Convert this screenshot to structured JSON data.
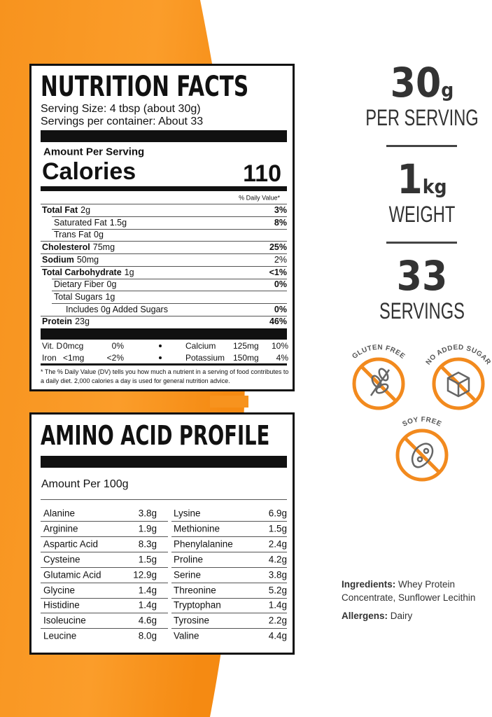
{
  "nutrition_facts": {
    "title": "NUTRITION FACTS",
    "serving_size": "Serving Size: 4 tbsp (about 30g)",
    "servings_per_container": "Servings per container: About 33",
    "amount_per_serving": "Amount Per Serving",
    "calories": {
      "label": "Calories",
      "value": 110
    },
    "daily_value_header": "% Daily Value*",
    "rows": [
      {
        "nutrient": "Total Fat",
        "amount": "2g",
        "daily_value": "3%"
      },
      {
        "nutrient": "Saturated Fat",
        "amount": "1.5g",
        "daily_value": "8%"
      },
      {
        "nutrient": "Trans Fat",
        "amount": "0g"
      },
      {
        "nutrient": "Cholesterol",
        "amount": "75mg",
        "daily_value": "25%"
      },
      {
        "nutrient": "Sodium",
        "amount": "50mg",
        "daily_value": "2%"
      },
      {
        "nutrient": "Total Carbohydrate",
        "amount": "1g",
        "daily_value": "<1%"
      },
      {
        "nutrient": "Dietary Fiber",
        "amount": "0g",
        "daily_value": "0%"
      },
      {
        "nutrient": "Total Sugars",
        "amount": "1g"
      },
      {
        "nutrient": "Includes 0g Added Sugars",
        "daily_value": "0%"
      },
      {
        "nutrient": "Protein",
        "amount": "23g",
        "daily_value": "46%"
      }
    ],
    "vitamins": [
      {
        "nutrient": "Vit. D",
        "amount": "0mcg",
        "daily_value": "0%"
      },
      {
        "nutrient": "Calcium",
        "amount": "125mg",
        "daily_value": "10%"
      },
      {
        "nutrient": "Iron",
        "amount": "<1mg",
        "daily_value": "<2%"
      },
      {
        "nutrient": "Potassium",
        "amount": "150mg",
        "daily_value": "4%"
      }
    ],
    "footnote": "* The % Daily Value (DV) tells you how much a nutrient in a serving of food contributes to a daily diet. 2,000 calories a day is used for general nutrition advice."
  },
  "amino_acid_profile": {
    "title": "AMINO ACID PROFILE",
    "basis": "Amount Per 100g",
    "rows": [
      {
        "name": "Alanine",
        "amount": "3.8g"
      },
      {
        "name": "Arginine",
        "amount": "1.9g"
      },
      {
        "name": "Aspartic Acid",
        "amount": "8.3g"
      },
      {
        "name": "Cysteine",
        "amount": "1.5g"
      },
      {
        "name": "Glutamic Acid",
        "amount": "12.9g"
      },
      {
        "name": "Glycine",
        "amount": "1.4g"
      },
      {
        "name": "Histidine",
        "amount": "1.4g"
      },
      {
        "name": "Isoleucine",
        "amount": "4.6g"
      },
      {
        "name": "Leucine",
        "amount": "8.0g"
      },
      {
        "name": "Lysine",
        "amount": "6.9g"
      },
      {
        "name": "Methionine",
        "amount": "1.5g"
      },
      {
        "name": "Phenylalanine",
        "amount": "2.4g"
      },
      {
        "name": "Proline",
        "amount": "4.2g"
      },
      {
        "name": "Serine",
        "amount": "3.8g"
      },
      {
        "name": "Threonine",
        "amount": "5.2g"
      },
      {
        "name": "Tryptophan",
        "amount": "1.4g"
      },
      {
        "name": "Tyrosine",
        "amount": "2.2g"
      },
      {
        "name": "Valine",
        "amount": "4.4g"
      }
    ]
  },
  "highlights": [
    {
      "value": 30,
      "unit": "g",
      "label": "PER SERVING"
    },
    {
      "value": 1,
      "unit": "kg",
      "label": "WEIGHT"
    },
    {
      "value": 33,
      "label": "SERVINGS"
    }
  ],
  "badges": [
    "GLUTEN FREE",
    "NO ADDED SUGAR",
    "SOY FREE"
  ],
  "ingredients": {
    "label": "Ingredients:",
    "text": "Whey Protein Concentrate, Sunflower Lecithin"
  },
  "allergens": {
    "label": "Allergens:",
    "text": "Dairy"
  }
}
